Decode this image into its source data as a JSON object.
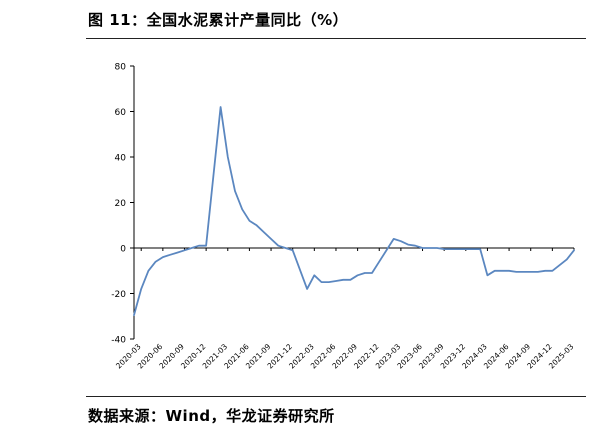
{
  "header": {
    "title": "图 11：全国水泥累计产量同比（%）"
  },
  "footer": {
    "source": "数据来源：Wind，华龙证券研究所"
  },
  "colors": {
    "line": "#5b87c0",
    "axis": "#000000"
  },
  "chart_data": {
    "type": "line",
    "title": "",
    "xlabel": "",
    "ylabel": "",
    "ylim": [
      -40,
      80
    ],
    "yticks": [
      -40,
      -20,
      0,
      20,
      40,
      60,
      80
    ],
    "grid": false,
    "legend": "none",
    "xticks": [
      "2020-03",
      "2020-06",
      "2020-09",
      "2020-12",
      "2021-03",
      "2021-06",
      "2021-09",
      "2021-12",
      "2022-03",
      "2022-06",
      "2022-09",
      "2022-12",
      "2023-03",
      "2023-06",
      "2023-09",
      "2023-12",
      "2024-03",
      "2024-06",
      "2024-09",
      "2024-12",
      "2025-03"
    ],
    "x": [
      "2020-02",
      "2020-03",
      "2020-04",
      "2020-05",
      "2020-06",
      "2020-07",
      "2020-08",
      "2020-09",
      "2020-10",
      "2020-11",
      "2020-12",
      "2021-02",
      "2021-03",
      "2021-04",
      "2021-05",
      "2021-06",
      "2021-07",
      "2021-08",
      "2021-09",
      "2021-10",
      "2021-11",
      "2021-12",
      "2022-02",
      "2022-03",
      "2022-04",
      "2022-05",
      "2022-06",
      "2022-07",
      "2022-08",
      "2022-09",
      "2022-10",
      "2022-11",
      "2022-12",
      "2023-02",
      "2023-03",
      "2023-04",
      "2023-05",
      "2023-06",
      "2023-07",
      "2023-08",
      "2023-09",
      "2023-10",
      "2023-11",
      "2023-12",
      "2024-02",
      "2024-03",
      "2024-04",
      "2024-05",
      "2024-06",
      "2024-07",
      "2024-08",
      "2024-09",
      "2024-10",
      "2024-11",
      "2024-12",
      "2025-02",
      "2025-03"
    ],
    "series": [
      {
        "values": [
          -29.5,
          -18,
          -10,
          -6,
          -4,
          -3,
          -2,
          -1,
          0,
          1,
          1,
          62,
          40,
          25,
          17,
          12,
          10,
          7,
          4,
          1,
          0,
          -1,
          -18,
          -12,
          -15,
          -15,
          -14.5,
          -14,
          -14,
          -12,
          -11,
          -11,
          -6,
          4,
          3,
          1.5,
          1,
          0,
          0,
          0,
          -0.5,
          -0.5,
          -0.5,
          -0.5,
          -0.5,
          -12,
          -10,
          -10,
          -10,
          -10.5,
          -10.5,
          -10.5,
          -10.5,
          -10,
          -10,
          -5,
          -1
        ]
      }
    ]
  }
}
